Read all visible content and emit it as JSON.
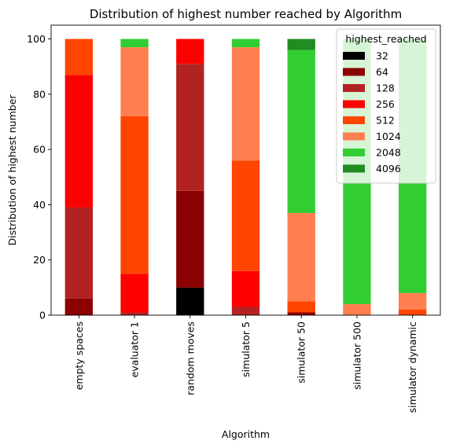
{
  "chart_data": {
    "type": "bar",
    "stacked": true,
    "title": "Distribution of highest number reached by Algorithm",
    "xlabel": "Algorithm",
    "ylabel": "Distribution of highest number",
    "ylim": [
      0,
      105
    ],
    "yticks": [
      0,
      20,
      40,
      60,
      80,
      100
    ],
    "categories": [
      "empty spaces",
      "evaluator 1",
      "random moves",
      "simulator 5",
      "simulator 50",
      "simulator 500",
      "simulator dynamic"
    ],
    "legend": {
      "title": "highest_reached",
      "placement": "top-right"
    },
    "series": [
      {
        "name": "32",
        "color": "#000000",
        "values": [
          0,
          0,
          10,
          0,
          0,
          0,
          0
        ]
      },
      {
        "name": "64",
        "color": "#8b0000",
        "values": [
          6,
          0,
          35,
          0,
          1,
          0,
          0
        ]
      },
      {
        "name": "128",
        "color": "#b22222",
        "values": [
          33,
          1,
          46,
          3,
          0,
          0,
          0
        ]
      },
      {
        "name": "256",
        "color": "#ff0000",
        "values": [
          48,
          14,
          9,
          13,
          0,
          0,
          0
        ]
      },
      {
        "name": "512",
        "color": "#ff4500",
        "values": [
          13,
          57,
          0,
          40,
          4,
          0,
          2
        ]
      },
      {
        "name": "1024",
        "color": "#ff7f50",
        "values": [
          0,
          25,
          0,
          41,
          32,
          4,
          6
        ]
      },
      {
        "name": "2048",
        "color": "#32cd32",
        "values": [
          0,
          3,
          0,
          3,
          59,
          96,
          92
        ]
      },
      {
        "name": "4096",
        "color": "#228b22",
        "values": [
          0,
          0,
          0,
          0,
          4,
          0,
          0
        ]
      }
    ]
  }
}
